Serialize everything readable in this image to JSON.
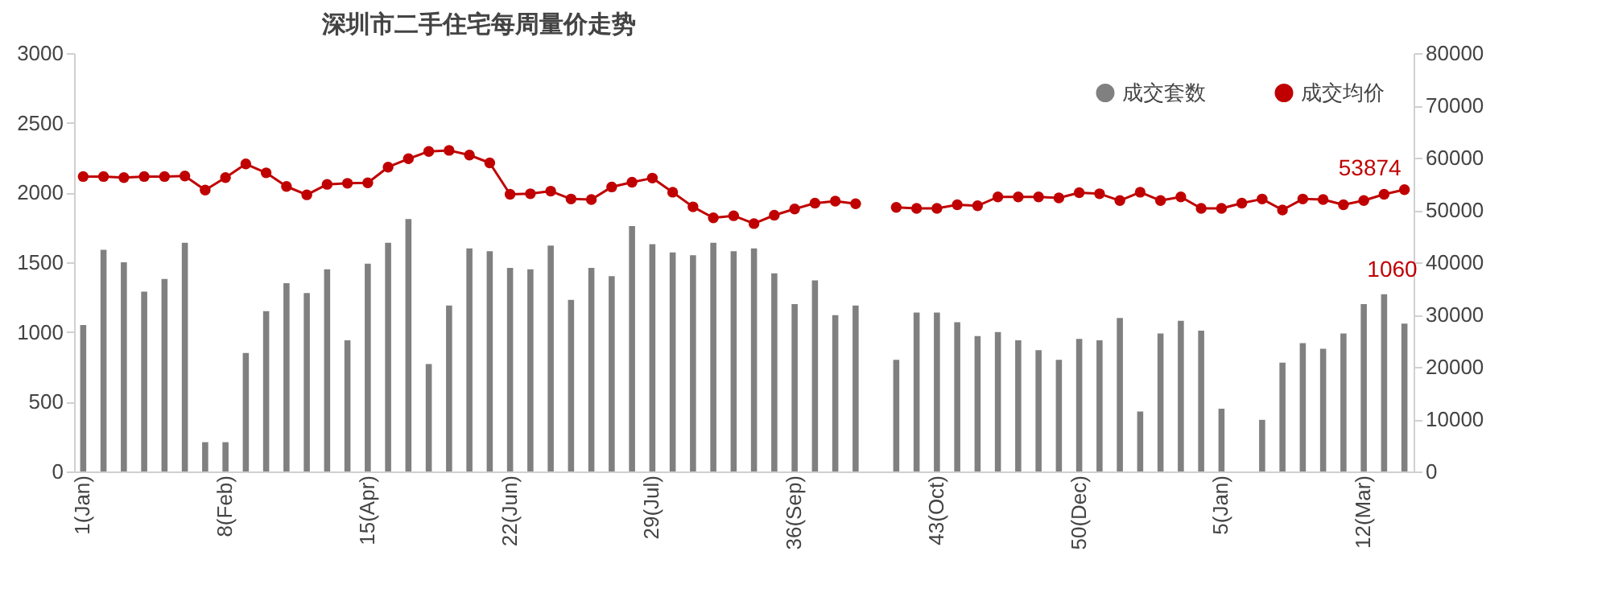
{
  "chart_data": {
    "type": "bar",
    "title": "深圳市二手住宅每周量价走势",
    "categories": [
      "1(Jan)",
      null,
      null,
      null,
      null,
      null,
      null,
      "8(Feb)",
      null,
      null,
      null,
      null,
      null,
      null,
      "15(Apr)",
      null,
      null,
      null,
      null,
      null,
      null,
      "22(Jun)",
      null,
      null,
      null,
      null,
      null,
      null,
      "29(Jul)",
      null,
      null,
      null,
      null,
      null,
      null,
      "36(Sep)",
      null,
      null,
      null,
      null,
      null,
      null,
      "43(Oct)",
      null,
      null,
      null,
      null,
      null,
      null,
      "50(Dec)",
      null,
      null,
      null,
      null,
      null,
      null,
      "5(Jan)",
      null,
      null,
      null,
      null,
      null,
      null,
      "12(Mar)",
      null,
      null
    ],
    "series": [
      {
        "name": "成交套数",
        "color": "#808080",
        "values": [
          1050,
          1590,
          1500,
          1290,
          1380,
          1640,
          210,
          210,
          850,
          1150,
          1350,
          1280,
          1450,
          940,
          1490,
          1640,
          1810,
          770,
          1190,
          1600,
          1580,
          1460,
          1450,
          1620,
          1230,
          1460,
          1400,
          1760,
          1630,
          1570,
          1550,
          1640,
          1580,
          1600,
          1420,
          1200,
          1370,
          1120,
          1190,
          null,
          800,
          1140,
          1140,
          1070,
          970,
          1000,
          940,
          870,
          800,
          950,
          940,
          1100,
          430,
          990,
          1080,
          1010,
          450,
          null,
          370,
          780,
          920,
          880,
          990,
          1200,
          1270,
          1060
        ],
        "value_labels": [
          null,
          null,
          null,
          null,
          null,
          null,
          null,
          null,
          null,
          null,
          null,
          null,
          null,
          null,
          null,
          null,
          null,
          null,
          null,
          null,
          null,
          null,
          null,
          null,
          null,
          null,
          null,
          null,
          null,
          null,
          null,
          null,
          null,
          null,
          null,
          null,
          null,
          null,
          null,
          null,
          null,
          null,
          null,
          null,
          null,
          null,
          null,
          null,
          null,
          null,
          null,
          null,
          null,
          null,
          null,
          null,
          null,
          null,
          null,
          null,
          null,
          null,
          null,
          null,
          null,
          "1060"
        ]
      },
      {
        "name": "成交均价",
        "type": "line",
        "axis": "y2",
        "color": "#c00000",
        "marker": "circle",
        "values": [
          56400,
          56400,
          56200,
          56400,
          56400,
          56500,
          53800,
          56200,
          58800,
          57100,
          54500,
          52900,
          54900,
          55100,
          55200,
          58200,
          59800,
          61200,
          61400,
          60500,
          59000,
          53000,
          53100,
          53600,
          52100,
          52000,
          54400,
          55300,
          56100,
          53400,
          50600,
          48500,
          48900,
          47400,
          49000,
          50200,
          51300,
          51700,
          51200,
          null,
          50500,
          50300,
          50300,
          51000,
          50800,
          52500,
          52500,
          52500,
          52300,
          53300,
          53100,
          51800,
          53400,
          51800,
          52500,
          50300,
          50300,
          51300,
          52100,
          50000,
          52100,
          52000,
          51000,
          51800,
          53000,
          53874
        ],
        "value_labels": [
          null,
          null,
          null,
          null,
          null,
          null,
          null,
          null,
          null,
          null,
          null,
          null,
          null,
          null,
          null,
          null,
          null,
          null,
          null,
          null,
          null,
          null,
          null,
          null,
          null,
          null,
          null,
          null,
          null,
          null,
          null,
          null,
          null,
          null,
          null,
          null,
          null,
          null,
          null,
          null,
          null,
          null,
          null,
          null,
          null,
          null,
          null,
          null,
          null,
          null,
          null,
          null,
          null,
          null,
          null,
          null,
          null,
          null,
          null,
          null,
          null,
          null,
          null,
          null,
          null,
          "53874"
        ]
      }
    ],
    "ylim": [
      0,
      3000
    ],
    "yticks": [
      0,
      500,
      1000,
      1500,
      2000,
      2500,
      3000
    ],
    "y2lim": [
      0,
      80000
    ],
    "y2ticks": [
      0,
      10000,
      20000,
      30000,
      40000,
      50000,
      60000,
      70000,
      80000
    ],
    "grid": false,
    "legend": "top right"
  }
}
